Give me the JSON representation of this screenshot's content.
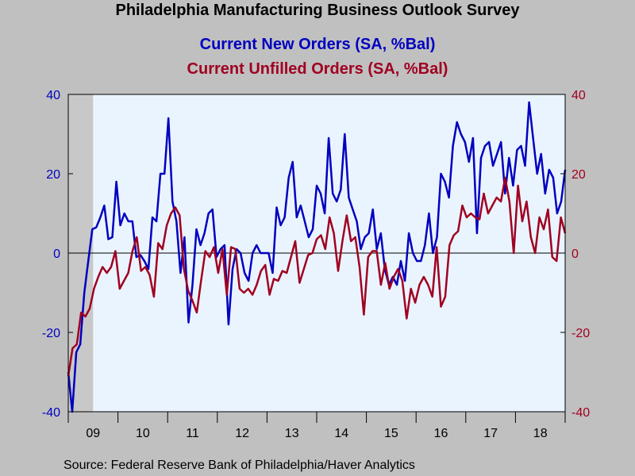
{
  "chart_data": {
    "type": "line",
    "title": "Philadelphia Manufacturing Business Outlook Survey",
    "source": "Source:  Federal Reserve Bank of Philadelphia/Haver Analytics",
    "recession_shading": {
      "start": 2009.0,
      "end": 2009.5
    },
    "x_range": [
      2009.0,
      2019.0
    ],
    "x_ticks": [
      {
        "label": "09",
        "value": 2009.5
      },
      {
        "label": "10",
        "value": 2010.5
      },
      {
        "label": "11",
        "value": 2011.5
      },
      {
        "label": "12",
        "value": 2012.5
      },
      {
        "label": "13",
        "value": 2013.5
      },
      {
        "label": "14",
        "value": 2014.5
      },
      {
        "label": "15",
        "value": 2015.5
      },
      {
        "label": "16",
        "value": 2016.5
      },
      {
        "label": "17",
        "value": 2017.5
      },
      {
        "label": "18",
        "value": 2018.5
      }
    ],
    "y_left": {
      "ylim": [
        -40,
        40
      ],
      "ticks": [
        -40,
        -20,
        0,
        20,
        40
      ],
      "color": "#0000c0"
    },
    "y_right": {
      "ylim": [
        -40,
        40
      ],
      "ticks": [
        -40,
        -20,
        0,
        20,
        40
      ],
      "color": "#a00020"
    },
    "series": [
      {
        "name": "Current New Orders (SA, %Bal)",
        "color": "#0000c0",
        "axis": "left",
        "values": [
          -30,
          -40,
          -25,
          -23,
          -10,
          -2,
          6,
          6.5,
          9,
          12,
          3.5,
          4,
          18,
          7,
          10,
          8,
          8,
          -1,
          -0.5,
          -2,
          -4,
          9,
          8,
          20,
          20,
          34,
          13,
          8,
          -5,
          4,
          -17.5,
          -8,
          6,
          2,
          5,
          10,
          11,
          -1,
          1,
          2,
          -18,
          -4,
          1,
          0,
          -5,
          -7,
          0,
          2,
          0,
          0,
          0,
          -5,
          11.5,
          7,
          9,
          19,
          23,
          9,
          12,
          8,
          4,
          6,
          17,
          15,
          10,
          29,
          15,
          13,
          16,
          30,
          14,
          11,
          8,
          1,
          4,
          5,
          11,
          1,
          5,
          -4,
          -8,
          -6,
          -8,
          -2,
          -7,
          5,
          0,
          -2,
          -2,
          2,
          10,
          0,
          4,
          20,
          18,
          14,
          27,
          33,
          30,
          28,
          23,
          29,
          5,
          24,
          27,
          28,
          22,
          25,
          28,
          15,
          24,
          17,
          26,
          27,
          22,
          38,
          29,
          20,
          25,
          15,
          21,
          19,
          10,
          13,
          21
        ]
      },
      {
        "name": "Current Unfilled Orders (SA, %Bal)",
        "color": "#a00020",
        "axis": "right",
        "values": [
          -31,
          -24,
          -23,
          -15,
          -16,
          -14,
          -9,
          -6,
          -3.5,
          -5,
          -3.5,
          0.5,
          -9,
          -7,
          -5,
          0.5,
          4,
          -4.5,
          -3.5,
          -5.5,
          -11,
          2.5,
          1,
          7,
          10,
          11.5,
          9.5,
          -4,
          -9.5,
          -12,
          -15,
          -7,
          0.5,
          -1,
          1.5,
          -5,
          1,
          -10.5,
          1.5,
          1,
          -9,
          -10,
          -9,
          -10.5,
          -8,
          -4.5,
          -3,
          -10.5,
          -6.5,
          -7,
          -4.5,
          -5,
          -1,
          3,
          -7.5,
          -4,
          -0.5,
          0,
          3.5,
          4.5,
          1,
          9,
          5,
          -4.5,
          3,
          9.5,
          3,
          4,
          -3.5,
          -15.5,
          -1,
          0.5,
          0.5,
          -8,
          -2.5,
          -9,
          -6,
          -4,
          -7,
          -16.5,
          -9,
          -12.5,
          -8,
          -6,
          -8,
          -11,
          1.5,
          -13.5,
          -11,
          2,
          4.5,
          5.5,
          12,
          9,
          10,
          9,
          8.5,
          15,
          10,
          12,
          14,
          13,
          19,
          13,
          0,
          17,
          8,
          13,
          4,
          0,
          9,
          6,
          11,
          -1,
          -2,
          9,
          5
        ]
      }
    ]
  }
}
